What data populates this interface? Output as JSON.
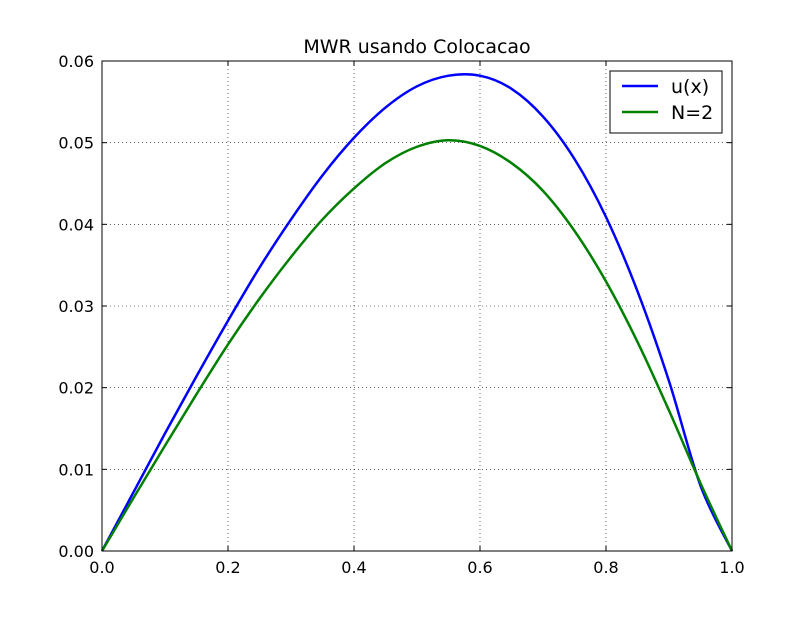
{
  "chart_data": {
    "type": "line",
    "title": "MWR usando Colocacao",
    "xlabel": "",
    "ylabel": "",
    "xlim": [
      0.0,
      1.0
    ],
    "ylim": [
      0.0,
      0.06
    ],
    "x_ticks": [
      0.0,
      0.2,
      0.4,
      0.6,
      0.8,
      1.0
    ],
    "x_tick_labels": [
      "0.0",
      "0.2",
      "0.4",
      "0.6",
      "0.8",
      "1.0"
    ],
    "y_ticks": [
      0.0,
      0.01,
      0.02,
      0.03,
      0.04,
      0.05,
      0.06
    ],
    "y_tick_labels": [
      "0.00",
      "0.01",
      "0.02",
      "0.03",
      "0.04",
      "0.05",
      "0.06"
    ],
    "grid": true,
    "legend_position": "top-right",
    "x": [
      0.0,
      0.05,
      0.1,
      0.15,
      0.2,
      0.25,
      0.3,
      0.35,
      0.4,
      0.45,
      0.5,
      0.55,
      0.6,
      0.65,
      0.7,
      0.75,
      0.8,
      0.85,
      0.9,
      0.95,
      1.0
    ],
    "series": [
      {
        "name": "u(x)",
        "color": "#0000ff",
        "values": [
          0.0,
          0.0072,
          0.0144,
          0.0214,
          0.0282,
          0.0347,
          0.0406,
          0.046,
          0.0506,
          0.0543,
          0.0569,
          0.0582,
          0.0582,
          0.0566,
          0.0532,
          0.048,
          0.0409,
          0.0318,
          0.0208,
          0.008,
          0.0
        ]
      },
      {
        "name": "N=2",
        "color": "#008000",
        "values": [
          0.0,
          0.0065,
          0.0129,
          0.0192,
          0.0253,
          0.0309,
          0.036,
          0.0406,
          0.0444,
          0.0475,
          0.0495,
          0.0503,
          0.0496,
          0.0475,
          0.0441,
          0.0392,
          0.033,
          0.0256,
          0.0172,
          0.0083,
          0.0
        ]
      }
    ]
  }
}
